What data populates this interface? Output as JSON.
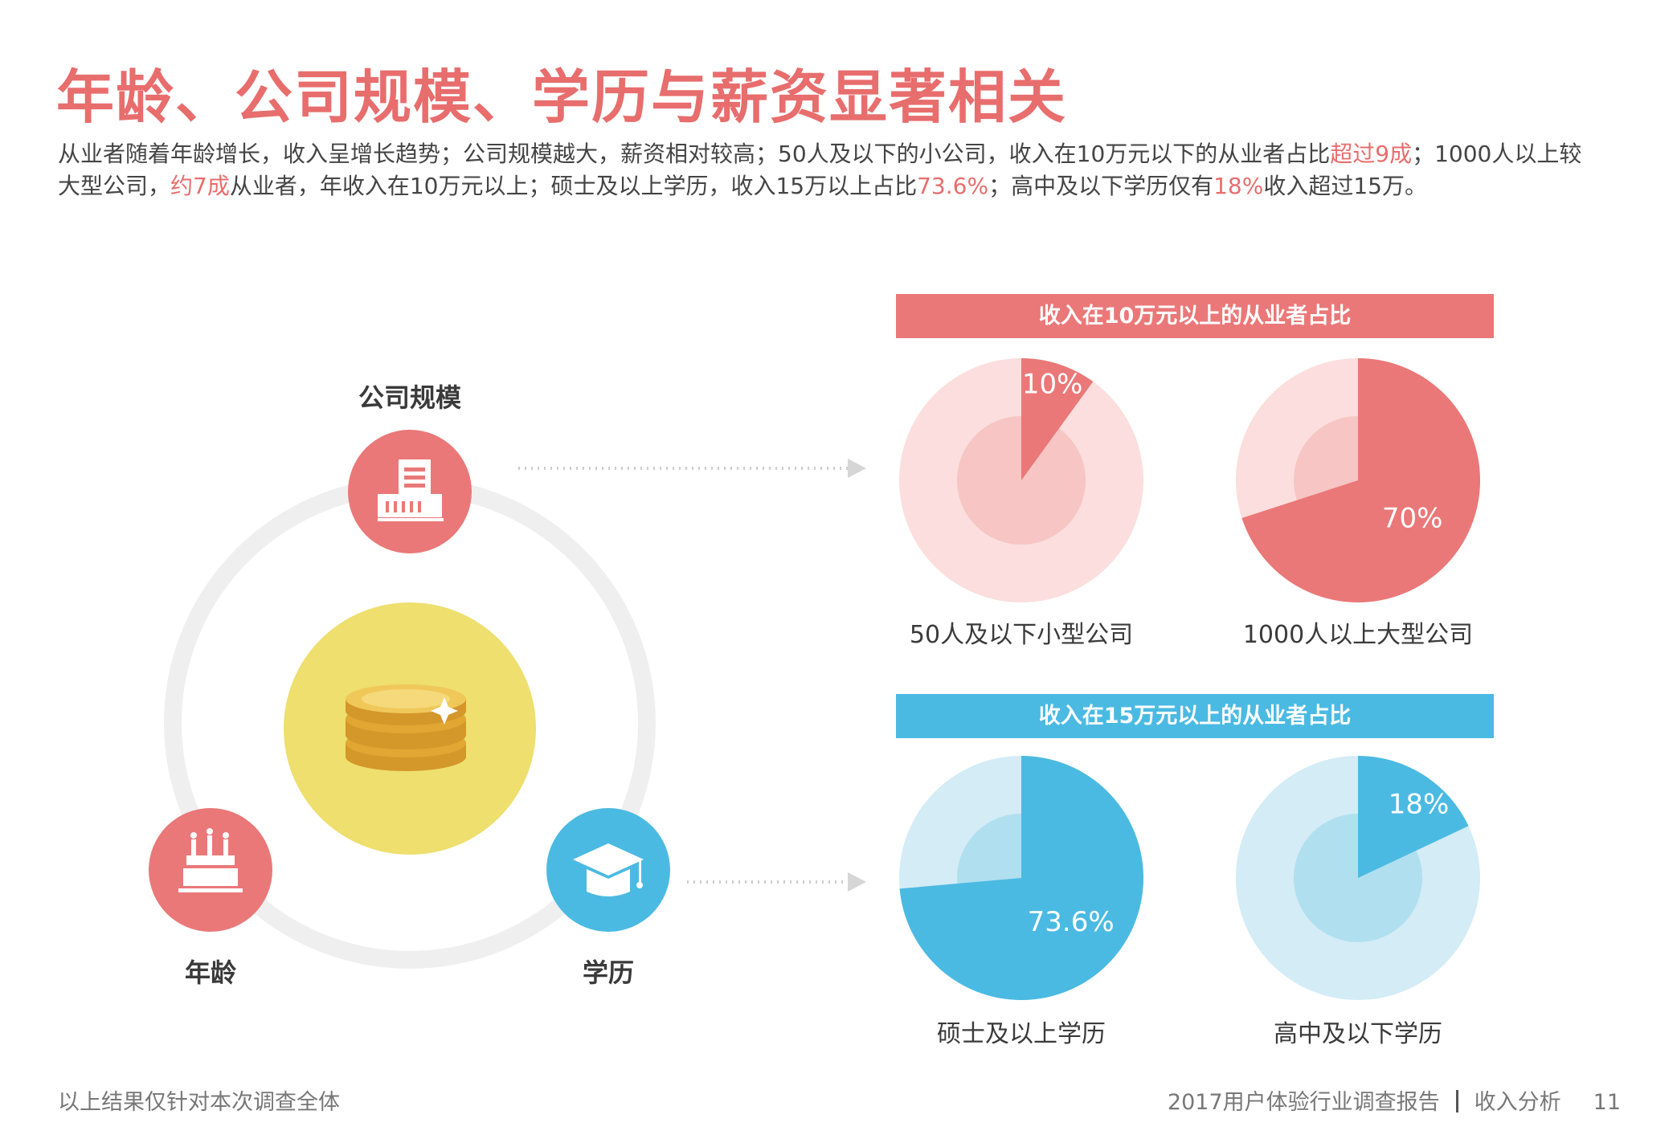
{
  "title": "年龄、公司规模、学历与薪资显著相关",
  "intro": [
    {
      "text": "从业者随着年龄增长，收入呈增长趋势；公司规模越大，薪资相对较高；50人及以下的小公司，收入在10万元以下的从业者占比",
      "hl": false
    },
    {
      "text": "超过9成",
      "hl": true
    },
    {
      "text": "；1000人以上较大型公司，",
      "hl": false
    },
    {
      "text": "约7成",
      "hl": true
    },
    {
      "text": "从业者，年收入在10万元以上；硕士及以上学历，收入15万以上占比",
      "hl": false
    },
    {
      "text": "73.6%",
      "hl": true
    },
    {
      "text": "；高中及以下学历仅有",
      "hl": false
    },
    {
      "text": "18%",
      "hl": true
    },
    {
      "text": "收入超过15万。",
      "hl": false
    }
  ],
  "diagram": {
    "labels": {
      "company": "公司规模",
      "age": "年龄",
      "education": "学历"
    },
    "icons": {
      "company": "building-icon",
      "age": "birthday-cake-icon",
      "education": "graduation-cap-icon",
      "center": "coins-icon"
    }
  },
  "colors": {
    "red": "#ea7878",
    "red_light": "#fbdedd",
    "red_mid": "#f6c5c4",
    "blue": "#4bbae2",
    "blue_light": "#d3ecf6",
    "blue_mid": "#b0dff0",
    "yellow": "#eedf6e"
  },
  "chart_data": [
    {
      "type": "pie",
      "group_title": "收入在10万元以上的从业者占比",
      "slices": [
        {
          "label": "50人及以下小型公司",
          "value": 10,
          "display": "10%"
        },
        {
          "label": "1000人以上大型公司",
          "value": 70,
          "display": "70%"
        }
      ]
    },
    {
      "type": "pie",
      "group_title": "收入在15万元以上的从业者占比",
      "slices": [
        {
          "label": "硕士及以上学历",
          "value": 73.6,
          "display": "73.6%"
        },
        {
          "label": "高中及以下学历",
          "value": 18,
          "display": "18%"
        }
      ]
    }
  ],
  "footer": {
    "note": "以上结果仅针对本次调查全体",
    "report": "2017用户体验行业调查报告",
    "section": "收入分析",
    "page": "11"
  }
}
